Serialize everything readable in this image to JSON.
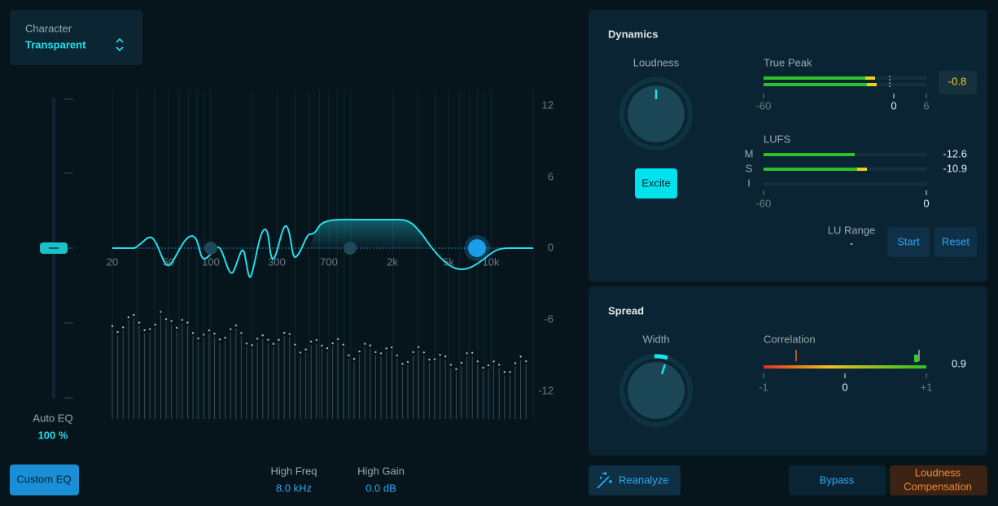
{
  "character": {
    "label": "Character",
    "value": "Transparent"
  },
  "eq": {
    "gain_scale": [
      "12",
      "6",
      "0",
      "-6",
      "-12"
    ],
    "freq_scale": [
      "20",
      "50",
      "100",
      "300",
      "700",
      "2k",
      "5k",
      "10k"
    ],
    "auto_eq": {
      "label": "Auto EQ",
      "value": "100 %"
    },
    "custom_eq_button": "Custom EQ",
    "high_freq": {
      "label": "High Freq",
      "value": "8.0 kHz"
    },
    "high_gain": {
      "label": "High Gain",
      "value": "0.0 dB"
    }
  },
  "dynamics": {
    "title": "Dynamics",
    "loudness_label": "Loudness",
    "excite_button": "Excite",
    "true_peak": {
      "label": "True Peak",
      "value": "-0.8",
      "scale": [
        "-60",
        "0",
        "6"
      ]
    },
    "lufs": {
      "label": "LUFS",
      "rows": [
        "M",
        "S",
        "I"
      ],
      "values": [
        "-12.6",
        "-10.9"
      ],
      "scale": [
        "-60",
        "0"
      ]
    },
    "lu_range": {
      "label": "LU Range",
      "value": "-"
    },
    "start_button": "Start",
    "reset_button": "Reset"
  },
  "spread": {
    "title": "Spread",
    "width_label": "Width",
    "correlation": {
      "label": "Correlation",
      "value": "0.9",
      "scale": [
        "-1",
        "0",
        "+1"
      ]
    }
  },
  "footer": {
    "reanalyze_button": "Reanalyze",
    "bypass_button": "Bypass",
    "loudness_compensation_button": [
      "Loudness",
      "Compensation"
    ]
  }
}
